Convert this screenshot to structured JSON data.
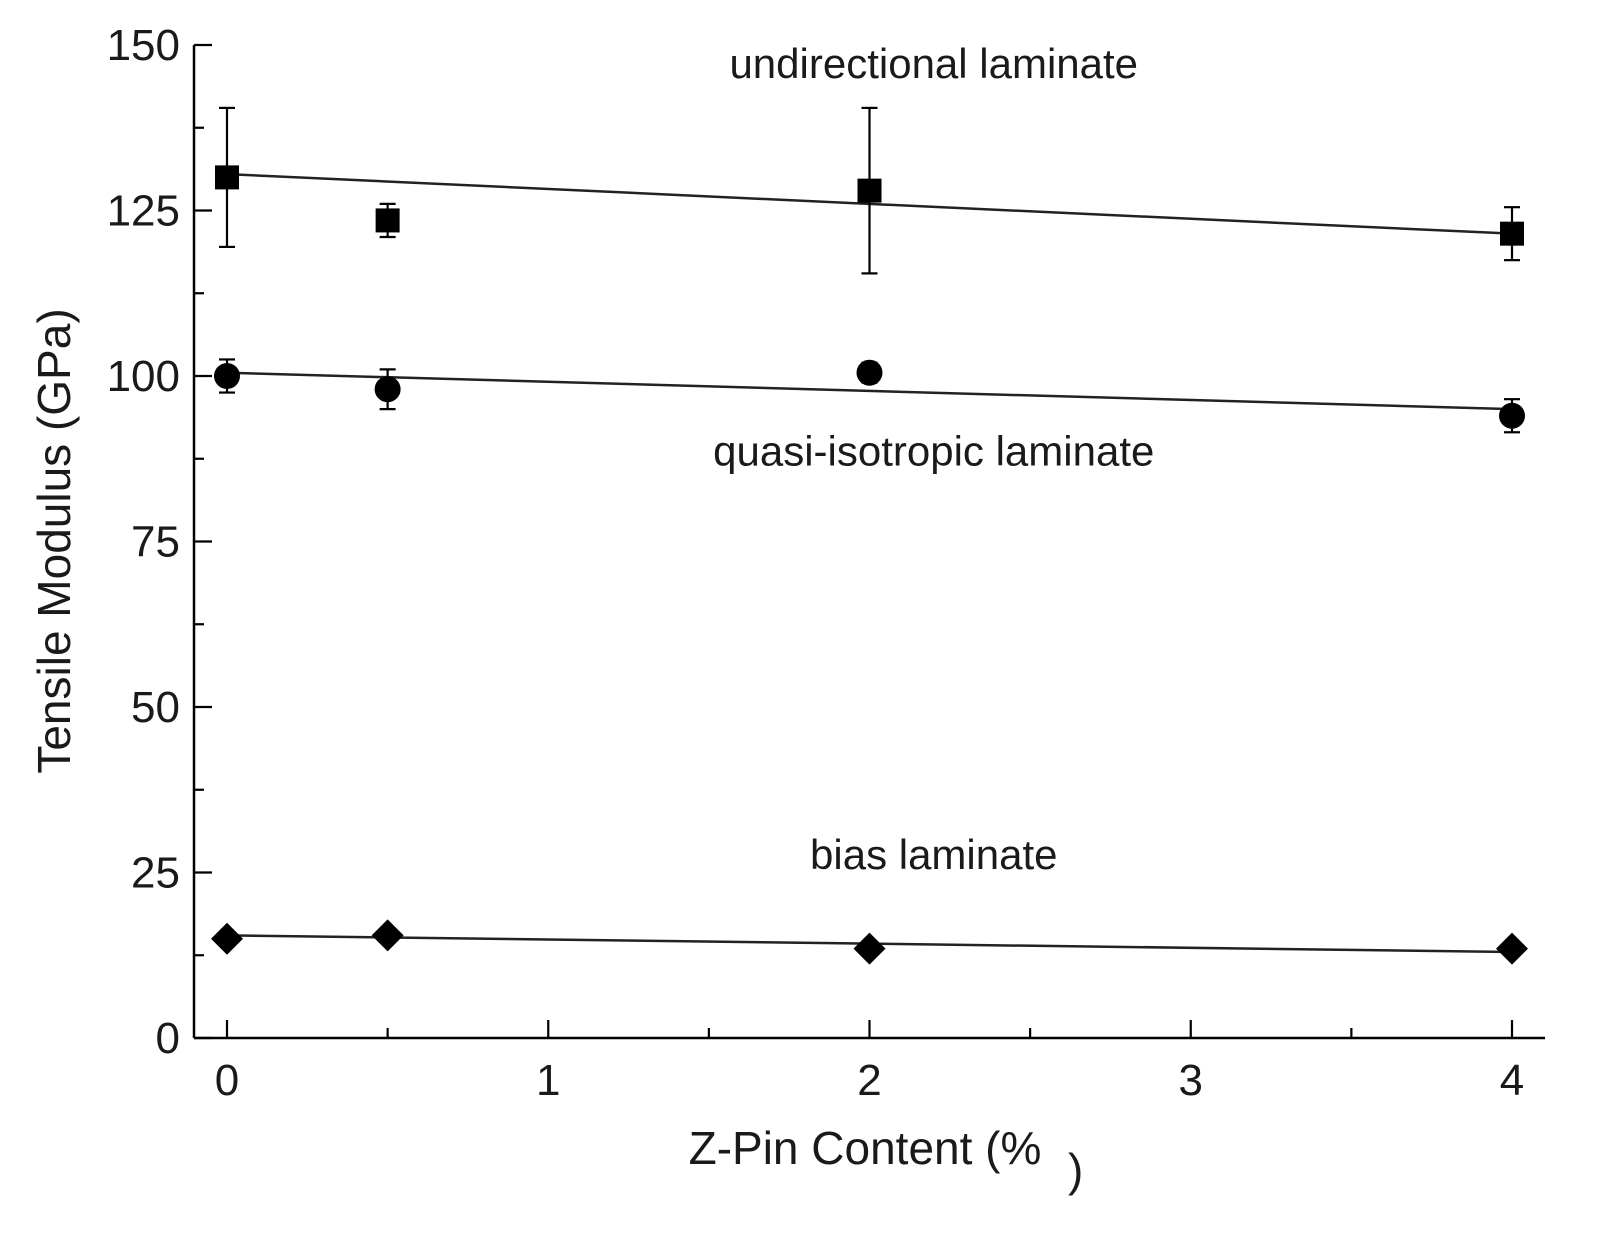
{
  "chart_data": {
    "type": "scatter",
    "xlabel": "Z-Pin Content (%",
    "xlabel_suffix": ")",
    "ylabel": "Tensile Modulus (GPa)",
    "xlim": [
      -0.1,
      4.1
    ],
    "ylim": [
      0,
      150
    ],
    "x_ticks": [
      0,
      1,
      2,
      3,
      4
    ],
    "y_ticks": [
      0,
      25,
      50,
      75,
      100,
      125,
      150
    ],
    "x_tick_labels": [
      "0",
      "1",
      "2",
      "3",
      "4"
    ],
    "y_tick_labels": [
      "0",
      "25",
      "50",
      "75",
      "100",
      "125",
      "150"
    ],
    "series": [
      {
        "name": "undirectional laminate",
        "marker": "square",
        "x": [
          0,
          0.5,
          2,
          4
        ],
        "y": [
          130,
          123.5,
          128,
          121.5
        ],
        "err": [
          10.5,
          2.5,
          12.5,
          4
        ],
        "fit": [
          130.5,
          121.5
        ]
      },
      {
        "name": "quasi-isotropic laminate",
        "marker": "circle",
        "x": [
          0,
          0.5,
          2,
          4
        ],
        "y": [
          100,
          98,
          100.5,
          94
        ],
        "err": [
          2.5,
          3,
          1.5,
          2.5
        ],
        "fit": [
          100.5,
          95
        ]
      },
      {
        "name": "bias laminate",
        "marker": "diamond",
        "x": [
          0,
          0.5,
          2,
          4
        ],
        "y": [
          15,
          15.5,
          13.5,
          13.5
        ],
        "err": [
          0,
          0,
          0,
          0
        ],
        "fit": [
          15.5,
          13
        ]
      }
    ],
    "annotations": [
      {
        "text": "undirectional laminate",
        "x": 2.2,
        "y": 145
      },
      {
        "text": "quasi-isotropic laminate",
        "x": 2.2,
        "y": 86.5
      },
      {
        "text": "bias laminate",
        "x": 2.2,
        "y": 25.5
      }
    ]
  }
}
